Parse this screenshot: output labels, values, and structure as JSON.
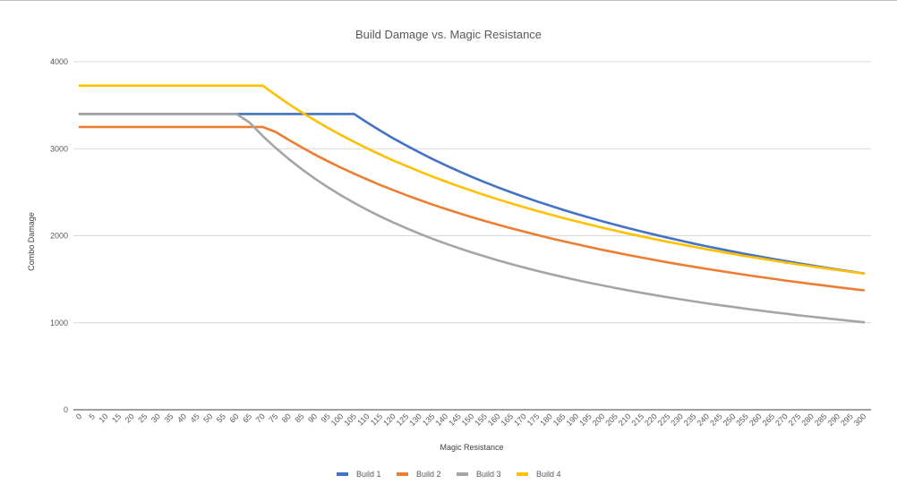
{
  "chart_data": {
    "type": "line",
    "title": "Build Damage vs. Magic Resistance",
    "xlabel": "Magic Resistance",
    "ylabel": "Combo Damage",
    "ylim": [
      0,
      4000
    ],
    "yticks": [
      "0",
      "1000",
      "2000",
      "3000",
      "4000"
    ],
    "ytick_values": [
      0,
      1000,
      2000,
      3000,
      4000
    ],
    "grid": true,
    "legend": "bottom",
    "x": [
      0,
      5,
      10,
      15,
      20,
      25,
      30,
      35,
      40,
      45,
      50,
      55,
      60,
      65,
      70,
      75,
      80,
      85,
      90,
      95,
      100,
      105,
      110,
      115,
      120,
      125,
      130,
      135,
      140,
      145,
      150,
      155,
      160,
      165,
      170,
      175,
      180,
      185,
      190,
      195,
      200,
      205,
      210,
      215,
      220,
      225,
      230,
      235,
      240,
      245,
      250,
      255,
      260,
      265,
      270,
      275,
      280,
      285,
      290,
      295,
      300
    ],
    "series": [
      {
        "name": "Build 1",
        "color": "#4472C4",
        "values": [
          3400,
          3400,
          3400,
          3400,
          3400,
          3400,
          3400,
          3400,
          3400,
          3400,
          3400,
          3400,
          3400,
          3400,
          3400,
          3400,
          3400,
          3400,
          3400,
          3400,
          3400,
          3400,
          3301,
          3208,
          3119,
          3036,
          2957,
          2881,
          2810,
          2742,
          2677,
          2615,
          2556,
          2500,
          2446,
          2394,
          2345,
          2297,
          2252,
          2208,
          2166,
          2125,
          2086,
          2048,
          2012,
          1977,
          1943,
          1910,
          1878,
          1848,
          1818,
          1789,
          1762,
          1735,
          1709,
          1683,
          1659,
          1635,
          1611,
          1589,
          1567
        ]
      },
      {
        "name": "Build 2",
        "color": "#ED7D31",
        "values": [
          3250,
          3250,
          3250,
          3250,
          3250,
          3250,
          3250,
          3250,
          3250,
          3250,
          3250,
          3250,
          3250,
          3250,
          3250,
          3193,
          3101,
          3015,
          2933,
          2856,
          2783,
          2713,
          2647,
          2583,
          2523,
          2466,
          2411,
          2358,
          2308,
          2260,
          2214,
          2170,
          2127,
          2086,
          2047,
          2009,
          1972,
          1937,
          1903,
          1870,
          1838,
          1808,
          1778,
          1749,
          1721,
          1694,
          1668,
          1643,
          1619,
          1595,
          1572,
          1549,
          1527,
          1506,
          1485,
          1465,
          1446,
          1427,
          1408,
          1390,
          1373
        ]
      },
      {
        "name": "Build 3",
        "color": "#A5A5A5",
        "values": [
          3400,
          3400,
          3400,
          3400,
          3400,
          3400,
          3400,
          3400,
          3400,
          3400,
          3400,
          3400,
          3400,
          3301,
          3148,
          3009,
          2881,
          2764,
          2656,
          2556,
          2464,
          2378,
          2297,
          2222,
          2152,
          2086,
          2024,
          1965,
          1910,
          1858,
          1809,
          1762,
          1717,
          1675,
          1635,
          1596,
          1560,
          1525,
          1491,
          1459,
          1429,
          1399,
          1371,
          1344,
          1318,
          1293,
          1269,
          1245,
          1223,
          1201,
          1181,
          1160,
          1141,
          1122,
          1104,
          1086,
          1069,
          1053,
          1037,
          1021,
          1006
        ]
      },
      {
        "name": "Build 4",
        "color": "#FFC000",
        "values": [
          3725,
          3725,
          3725,
          3725,
          3725,
          3725,
          3725,
          3725,
          3725,
          3725,
          3725,
          3725,
          3725,
          3725,
          3725,
          3617,
          3514,
          3417,
          3326,
          3239,
          3157,
          3079,
          3004,
          2933,
          2865,
          2801,
          2739,
          2680,
          2623,
          2569,
          2517,
          2467,
          2419,
          2373,
          2328,
          2285,
          2244,
          2204,
          2166,
          2129,
          2093,
          2058,
          2024,
          1992,
          1961,
          1930,
          1901,
          1872,
          1844,
          1817,
          1791,
          1765,
          1741,
          1717,
          1693,
          1670,
          1648,
          1627,
          1606,
          1585,
          1565
        ]
      }
    ]
  }
}
